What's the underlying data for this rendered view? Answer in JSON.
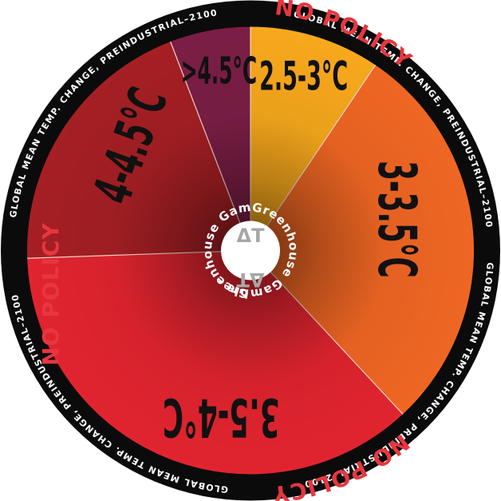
{
  "rim": {
    "policy_label": "NO POLICY",
    "metric_label": "GLOBAL MEAN TEMP. CHANGE, PREINDUSTRIAL–2100"
  },
  "hub": {
    "ring_text": "Greenhouse Gamble ·",
    "delta_symbol": "ΔT"
  },
  "slices": [
    {
      "label": "2.5-3°C",
      "color": "#f7a81c"
    },
    {
      "label": "3-3.5°C",
      "color": "#ef6623"
    },
    {
      "label": "3.5-4°C",
      "color": "#e1242f"
    },
    {
      "label": "4-4.5°C",
      "color": "#a51f24"
    },
    {
      "label": ">4.5°C",
      "color": "#7b1e45"
    }
  ],
  "colors": {
    "rim": "#0b0b0b",
    "policy_text": "#e8363f",
    "divider": "#f4d7c8"
  }
}
